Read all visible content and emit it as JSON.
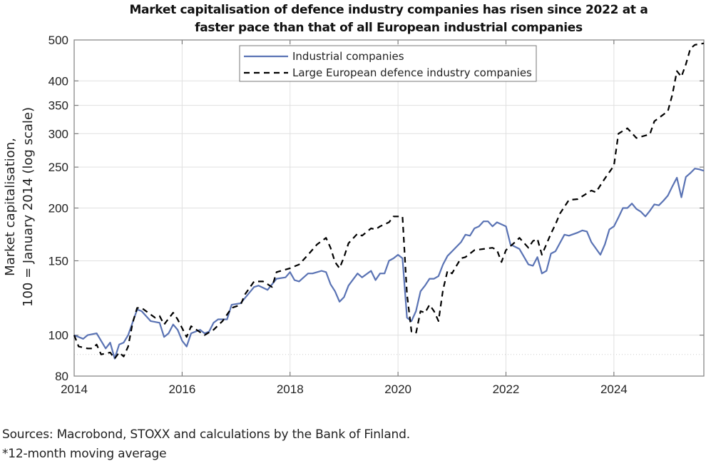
{
  "chart_data": {
    "type": "line",
    "title_lines": [
      "Market capitalisation of defence industry companies has risen since 2022 at a",
      "faster pace than that of all European industrial companies"
    ],
    "ylabel_lines": [
      "Market capitalisation,",
      "100 = January 2014 (log scale)"
    ],
    "xlabel": "",
    "y_scale": "log",
    "ylim": [
      80,
      500
    ],
    "y_ticks": [
      80,
      100,
      150,
      200,
      250,
      300,
      350,
      400,
      500
    ],
    "y_minor_dotted": [
      90
    ],
    "xlim": [
      "2014-01",
      "2025-09"
    ],
    "x_ticks": [
      "2014",
      "2016",
      "2018",
      "2020",
      "2022",
      "2024"
    ],
    "grid": true,
    "legend_position": "top-center",
    "series": [
      {
        "name": "Industrial companies",
        "color": "#5a73b4",
        "style": "solid",
        "points": [
          [
            "2014-01",
            100
          ],
          [
            "2014-03",
            98
          ],
          [
            "2014-04",
            100
          ],
          [
            "2014-06",
            101
          ],
          [
            "2014-08",
            93
          ],
          [
            "2014-09",
            96
          ],
          [
            "2014-10",
            88
          ],
          [
            "2014-11",
            95
          ],
          [
            "2014-12",
            96
          ],
          [
            "2015-01",
            100
          ],
          [
            "2015-03",
            115
          ],
          [
            "2015-04",
            114
          ],
          [
            "2015-06",
            108
          ],
          [
            "2015-08",
            107
          ],
          [
            "2015-09",
            99
          ],
          [
            "2015-10",
            101
          ],
          [
            "2015-11",
            106
          ],
          [
            "2015-12",
            103
          ],
          [
            "2016-01",
            97
          ],
          [
            "2016-02",
            94
          ],
          [
            "2016-03",
            101
          ],
          [
            "2016-05",
            103
          ],
          [
            "2016-06",
            101
          ],
          [
            "2016-07",
            102
          ],
          [
            "2016-08",
            107
          ],
          [
            "2016-09",
            109
          ],
          [
            "2016-11",
            109
          ],
          [
            "2016-12",
            118
          ],
          [
            "2017-02",
            119
          ],
          [
            "2017-05",
            130
          ],
          [
            "2017-06",
            131
          ],
          [
            "2017-08",
            128
          ],
          [
            "2017-10",
            136
          ],
          [
            "2017-12",
            137
          ],
          [
            "2018-01",
            141
          ],
          [
            "2018-02",
            135
          ],
          [
            "2018-03",
            134
          ],
          [
            "2018-05",
            140
          ],
          [
            "2018-06",
            140
          ],
          [
            "2018-08",
            142
          ],
          [
            "2018-09",
            141
          ],
          [
            "2018-10",
            132
          ],
          [
            "2018-11",
            127
          ],
          [
            "2018-12",
            120
          ],
          [
            "2019-01",
            123
          ],
          [
            "2019-02",
            131
          ],
          [
            "2019-04",
            140
          ],
          [
            "2019-05",
            137
          ],
          [
            "2019-07",
            142
          ],
          [
            "2019-08",
            135
          ],
          [
            "2019-09",
            140
          ],
          [
            "2019-10",
            140
          ],
          [
            "2019-11",
            150
          ],
          [
            "2019-12",
            152
          ],
          [
            "2020-01",
            155
          ],
          [
            "2020-02",
            152
          ],
          [
            "2020-03",
            110
          ],
          [
            "2020-04",
            108
          ],
          [
            "2020-05",
            114
          ],
          [
            "2020-06",
            127
          ],
          [
            "2020-07",
            131
          ],
          [
            "2020-08",
            136
          ],
          [
            "2020-09",
            136
          ],
          [
            "2020-10",
            138
          ],
          [
            "2020-11",
            147
          ],
          [
            "2020-12",
            154
          ],
          [
            "2021-03",
            166
          ],
          [
            "2021-04",
            173
          ],
          [
            "2021-05",
            172
          ],
          [
            "2021-06",
            179
          ],
          [
            "2021-07",
            181
          ],
          [
            "2021-08",
            186
          ],
          [
            "2021-09",
            186
          ],
          [
            "2021-10",
            181
          ],
          [
            "2021-11",
            185
          ],
          [
            "2022-01",
            181
          ],
          [
            "2022-02",
            164
          ],
          [
            "2022-04",
            160
          ],
          [
            "2022-06",
            147
          ],
          [
            "2022-07",
            146
          ],
          [
            "2022-08",
            153
          ],
          [
            "2022-09",
            140
          ],
          [
            "2022-10",
            142
          ],
          [
            "2022-11",
            156
          ],
          [
            "2022-12",
            158
          ],
          [
            "2023-02",
            173
          ],
          [
            "2023-03",
            172
          ],
          [
            "2023-05",
            175
          ],
          [
            "2023-06",
            177
          ],
          [
            "2023-07",
            176
          ],
          [
            "2023-08",
            166
          ],
          [
            "2023-10",
            155
          ],
          [
            "2023-11",
            164
          ],
          [
            "2023-12",
            178
          ],
          [
            "2024-01",
            181
          ],
          [
            "2024-02",
            190
          ],
          [
            "2024-03",
            200
          ],
          [
            "2024-04",
            200
          ],
          [
            "2024-05",
            205
          ],
          [
            "2024-06",
            199
          ],
          [
            "2024-07",
            196
          ],
          [
            "2024-08",
            191
          ],
          [
            "2024-09",
            197
          ],
          [
            "2024-10",
            204
          ],
          [
            "2024-11",
            203
          ],
          [
            "2024-12",
            208
          ],
          [
            "2025-01",
            214
          ],
          [
            "2025-02",
            225
          ],
          [
            "2025-03",
            236
          ],
          [
            "2025-04",
            212
          ],
          [
            "2025-05",
            237
          ],
          [
            "2025-06",
            242
          ],
          [
            "2025-07",
            248
          ],
          [
            "2025-08",
            247
          ],
          [
            "2025-09",
            245
          ]
        ]
      },
      {
        "name": "Large European defence industry companies",
        "color": "#000000",
        "style": "dashed",
        "points": [
          [
            "2014-01",
            100
          ],
          [
            "2014-02",
            94
          ],
          [
            "2014-04",
            93
          ],
          [
            "2014-05",
            93
          ],
          [
            "2014-06",
            95
          ],
          [
            "2014-07",
            90
          ],
          [
            "2014-09",
            91
          ],
          [
            "2014-10",
            88
          ],
          [
            "2014-11",
            91
          ],
          [
            "2014-12",
            89
          ],
          [
            "2015-01",
            94
          ],
          [
            "2015-02",
            107
          ],
          [
            "2015-03",
            116
          ],
          [
            "2015-04",
            116
          ],
          [
            "2015-07",
            110
          ],
          [
            "2015-08",
            111
          ],
          [
            "2015-09",
            106
          ],
          [
            "2015-11",
            113
          ],
          [
            "2015-12",
            109
          ],
          [
            "2016-02",
            99
          ],
          [
            "2016-03",
            105
          ],
          [
            "2016-06",
            100
          ],
          [
            "2016-08",
            103
          ],
          [
            "2016-10",
            108
          ],
          [
            "2016-12",
            116
          ],
          [
            "2017-02",
            118
          ],
          [
            "2017-03",
            125
          ],
          [
            "2017-05",
            134
          ],
          [
            "2017-07",
            134
          ],
          [
            "2017-09",
            130
          ],
          [
            "2017-10",
            141
          ],
          [
            "2018-01",
            144
          ],
          [
            "2018-03",
            147
          ],
          [
            "2018-05",
            155
          ],
          [
            "2018-07",
            164
          ],
          [
            "2018-09",
            170
          ],
          [
            "2018-10",
            161
          ],
          [
            "2018-11",
            149
          ],
          [
            "2018-12",
            144
          ],
          [
            "2019-01",
            153
          ],
          [
            "2019-02",
            165
          ],
          [
            "2019-04",
            174
          ],
          [
            "2019-05",
            172
          ],
          [
            "2019-07",
            179
          ],
          [
            "2019-08",
            178
          ],
          [
            "2019-09",
            181
          ],
          [
            "2019-11",
            185
          ],
          [
            "2019-12",
            191
          ],
          [
            "2020-02",
            191
          ],
          [
            "2020-03",
            125
          ],
          [
            "2020-04",
            102
          ],
          [
            "2020-05",
            101
          ],
          [
            "2020-06",
            114
          ],
          [
            "2020-07",
            113
          ],
          [
            "2020-08",
            118
          ],
          [
            "2020-09",
            114
          ],
          [
            "2020-10",
            108
          ],
          [
            "2020-11",
            128
          ],
          [
            "2020-12",
            142
          ],
          [
            "2021-01",
            140
          ],
          [
            "2021-02",
            146
          ],
          [
            "2021-03",
            152
          ],
          [
            "2021-04",
            153
          ],
          [
            "2021-06",
            159
          ],
          [
            "2021-08",
            160
          ],
          [
            "2021-10",
            161
          ],
          [
            "2021-11",
            159
          ],
          [
            "2021-12",
            149
          ],
          [
            "2022-01",
            159
          ],
          [
            "2022-03",
            166
          ],
          [
            "2022-04",
            170
          ],
          [
            "2022-06",
            161
          ],
          [
            "2022-07",
            167
          ],
          [
            "2022-08",
            169
          ],
          [
            "2022-09",
            155
          ],
          [
            "2022-11",
            174
          ],
          [
            "2022-12",
            183
          ],
          [
            "2023-01",
            194
          ],
          [
            "2023-03",
            209
          ],
          [
            "2023-05",
            210
          ],
          [
            "2023-08",
            220
          ],
          [
            "2023-09",
            218
          ],
          [
            "2023-11",
            235
          ],
          [
            "2024-01",
            252
          ],
          [
            "2024-02",
            300
          ],
          [
            "2024-04",
            309
          ],
          [
            "2024-06",
            293
          ],
          [
            "2024-09",
            299
          ],
          [
            "2024-10",
            321
          ],
          [
            "2025-01",
            339
          ],
          [
            "2025-02",
            371
          ],
          [
            "2025-03",
            422
          ],
          [
            "2025-04",
            409
          ],
          [
            "2025-05",
            438
          ],
          [
            "2025-06",
            477
          ],
          [
            "2025-07",
            487
          ],
          [
            "2025-09",
            491
          ]
        ]
      }
    ]
  },
  "footer": {
    "sources": "Sources: Macrobond, STOXX and calculations by the Bank of Finland.",
    "note": "*12-month moving average"
  }
}
